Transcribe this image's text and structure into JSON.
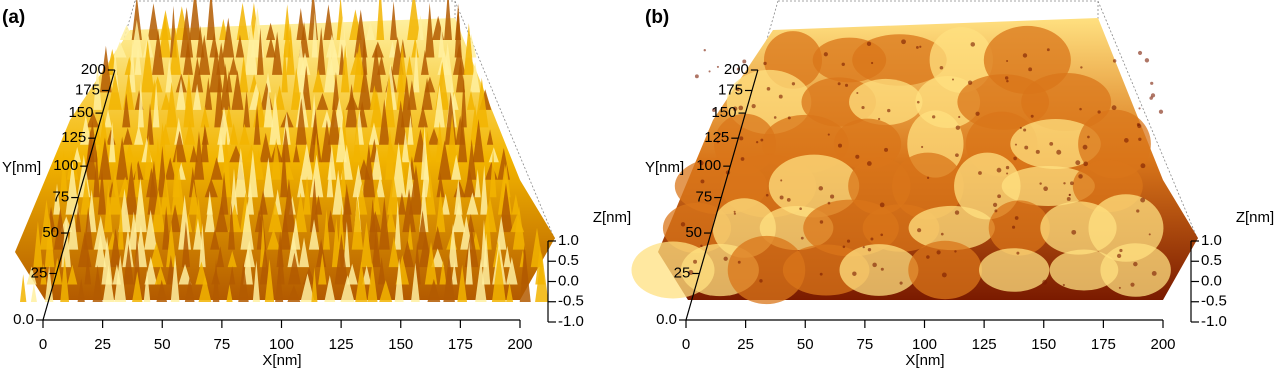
{
  "chart_data": [
    {
      "type": "surface",
      "panel_label": "(a)",
      "xlabel": "X[nm]",
      "ylabel": "Y[nm]",
      "zlabel": "Z[nm]",
      "colors": [
        "#b35a00",
        "#f2b400",
        "#fff0a0"
      ],
      "xlim": [
        0,
        200
      ],
      "xticks": [
        0,
        25,
        50,
        75,
        100,
        125,
        150,
        175,
        200
      ],
      "ylim": [
        0,
        200
      ],
      "yticks": [
        {
          "value": 0,
          "label": "0.0"
        },
        25,
        50,
        75,
        100,
        125,
        150,
        175,
        200
      ],
      "zlim": [
        -1,
        1
      ],
      "zticks": [
        {
          "value": -1,
          "label": "-1.0"
        },
        {
          "value": -0.5,
          "label": "-0.5"
        },
        {
          "value": 0,
          "label": "0.0"
        },
        {
          "value": 0.5,
          "label": "0.5"
        },
        {
          "value": 1,
          "label": "1.0"
        }
      ]
    },
    {
      "type": "surface",
      "panel_label": "(b)",
      "xlabel": "X[nm]",
      "ylabel": "Y[nm]",
      "zlabel": "Z[nm]",
      "colors": [
        "#7a1a00",
        "#d9761a",
        "#ffe080"
      ],
      "xlim": [
        0,
        200
      ],
      "xticks": [
        0,
        25,
        50,
        75,
        100,
        125,
        150,
        175,
        200
      ],
      "ylim": [
        0,
        200
      ],
      "yticks": [
        {
          "value": 0,
          "label": "0.0"
        },
        25,
        50,
        75,
        100,
        125,
        150,
        175,
        200
      ],
      "zlim": [
        -1,
        1
      ],
      "zticks": [
        {
          "value": -1,
          "label": "-1.0"
        },
        {
          "value": -0.5,
          "label": "-0.5"
        },
        {
          "value": 0,
          "label": "0.0"
        },
        {
          "value": 0.5,
          "label": "0.5"
        },
        {
          "value": 1,
          "label": "1.0"
        }
      ]
    }
  ]
}
